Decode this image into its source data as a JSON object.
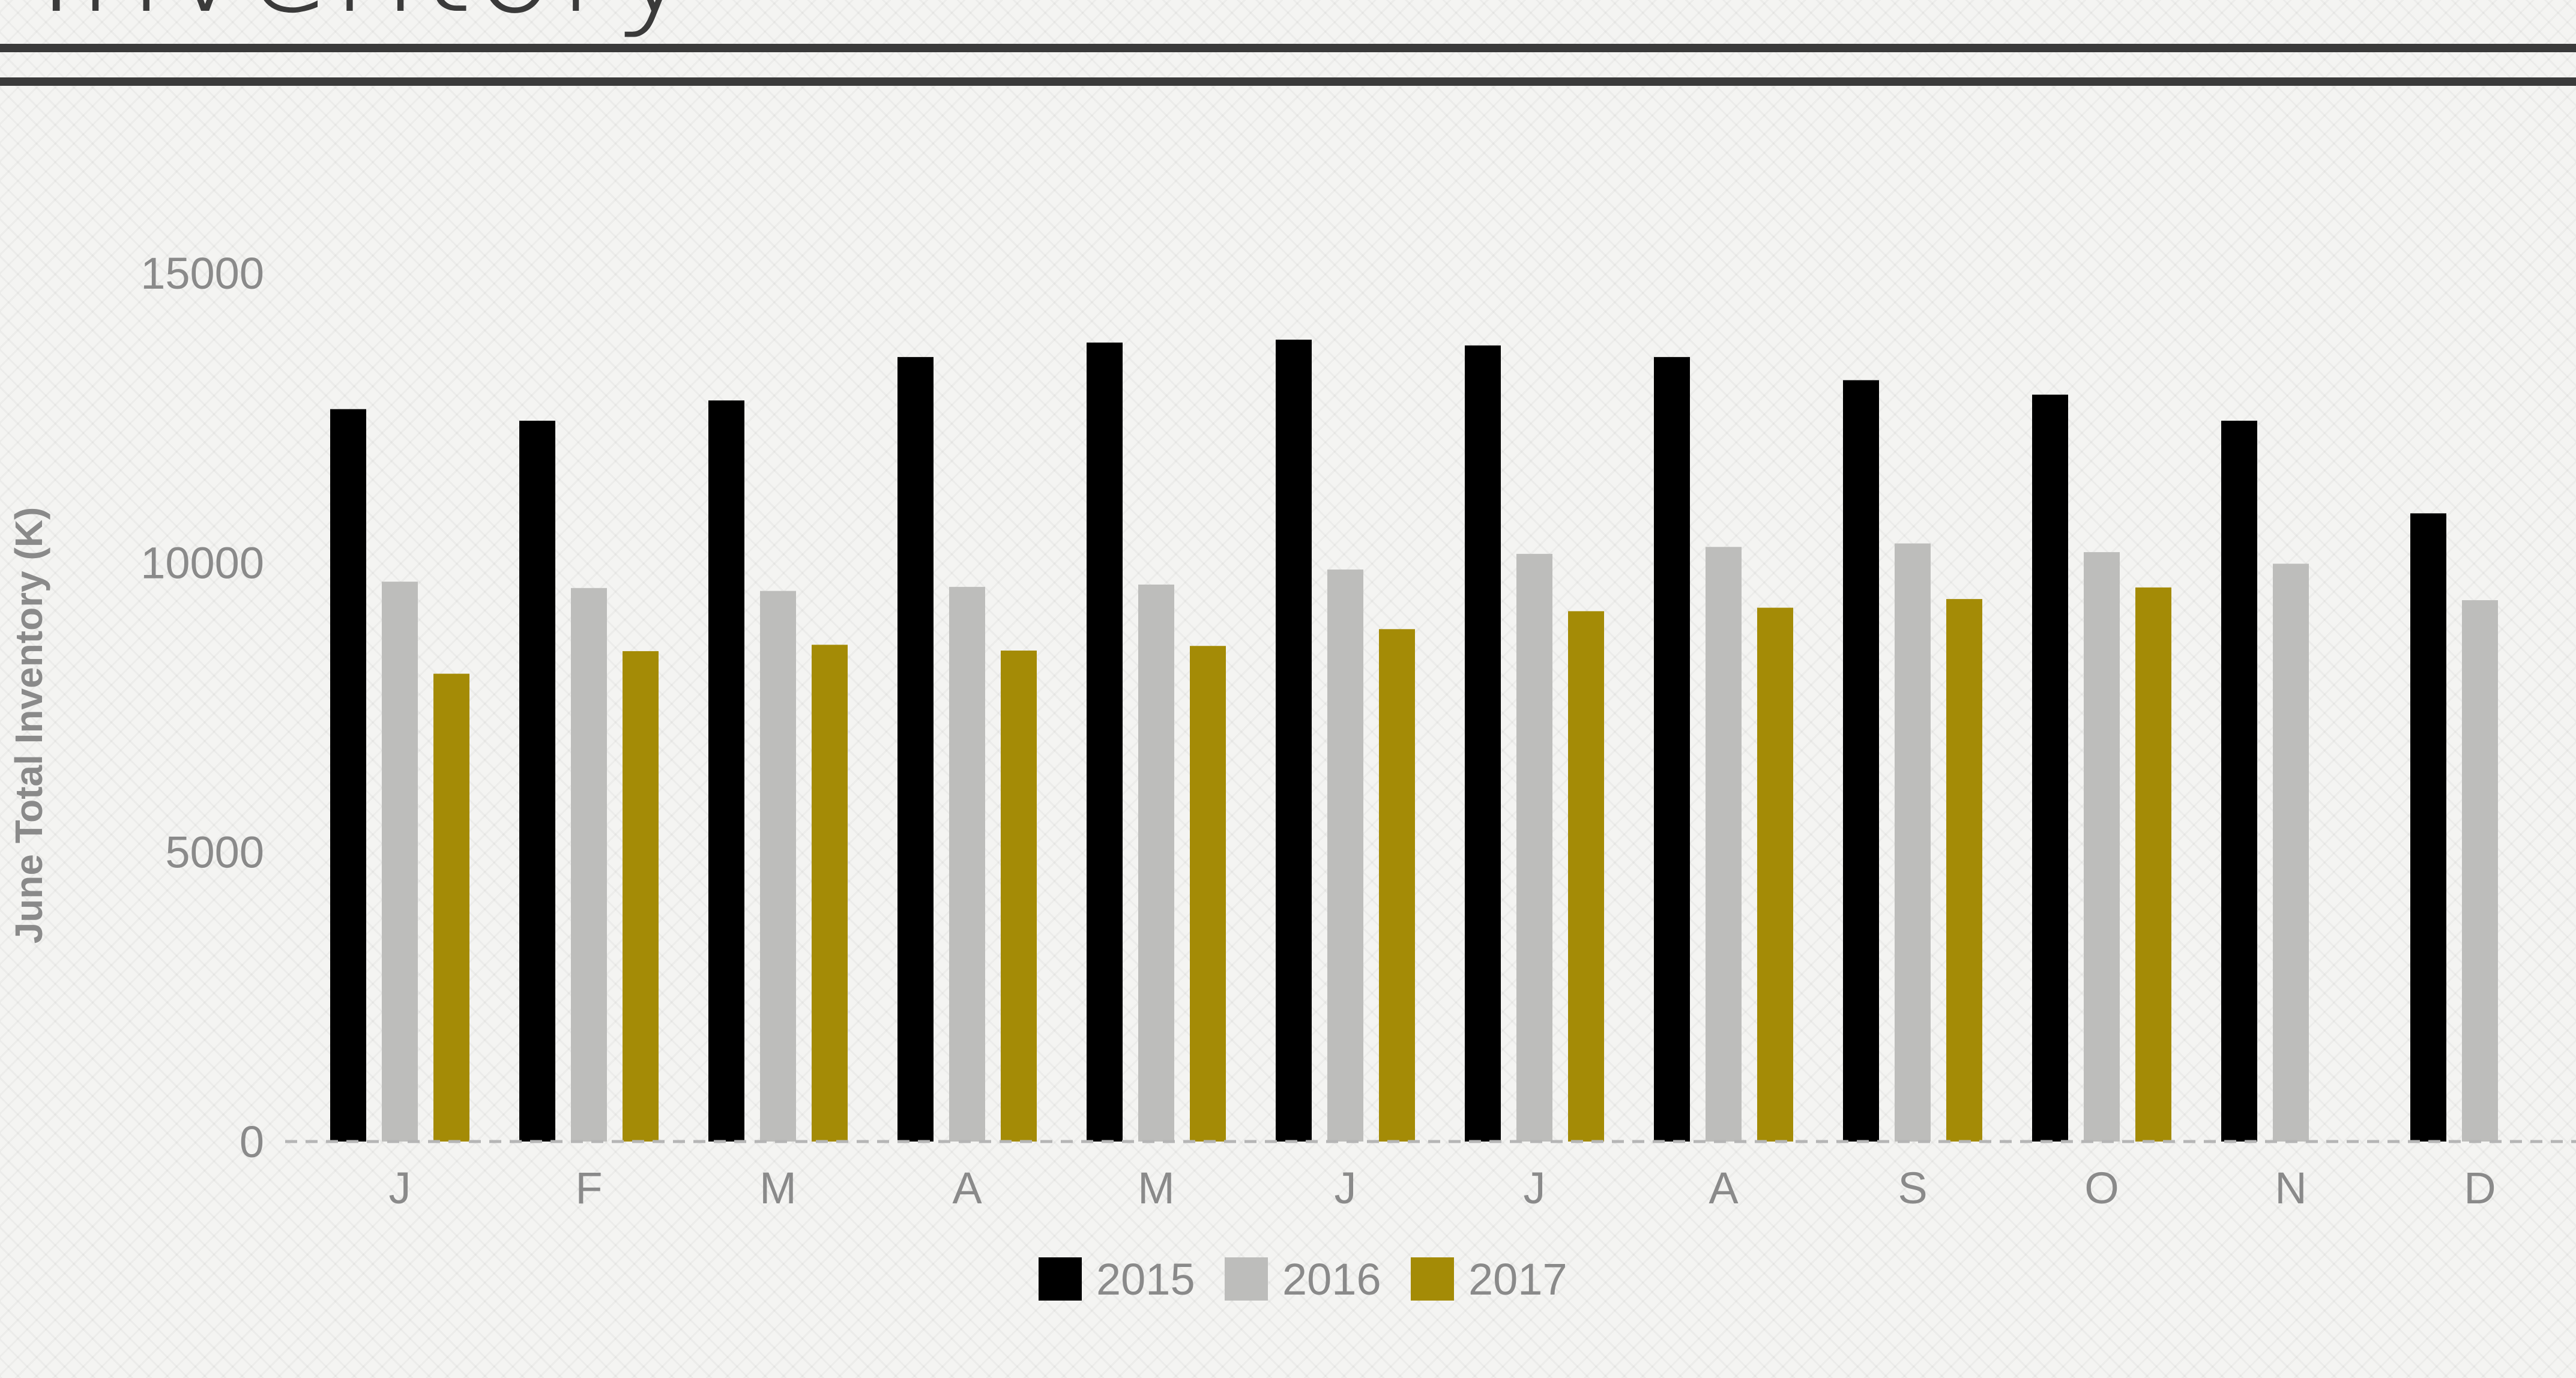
{
  "header": {
    "title": "Inventory"
  },
  "chart_data": {
    "type": "bar",
    "ylabel": "June Total Inventory (K)",
    "ylim": [
      0,
      15000
    ],
    "yticks": [
      0,
      5000,
      10000,
      15000
    ],
    "grid": false,
    "legend_position": "bottom",
    "categories": [
      "J",
      "F",
      "M",
      "A",
      "M",
      "J",
      "J",
      "A",
      "S",
      "O",
      "N",
      "D"
    ],
    "series": [
      {
        "name": "2015",
        "color": "#000000",
        "values": [
          12650,
          12450,
          12800,
          13550,
          13800,
          13850,
          13750,
          13550,
          13150,
          12900,
          12450,
          10850
        ]
      },
      {
        "name": "2016",
        "color": "#bdbdbb",
        "values": [
          9670,
          9560,
          9510,
          9580,
          9620,
          9880,
          10150,
          10270,
          10330,
          10180,
          9980,
          9350
        ]
      },
      {
        "name": "2017",
        "color": "#a48b06",
        "values": [
          8080,
          8470,
          8580,
          8480,
          8560,
          8850,
          9160,
          9220,
          9370,
          9570,
          null,
          null
        ]
      }
    ]
  }
}
